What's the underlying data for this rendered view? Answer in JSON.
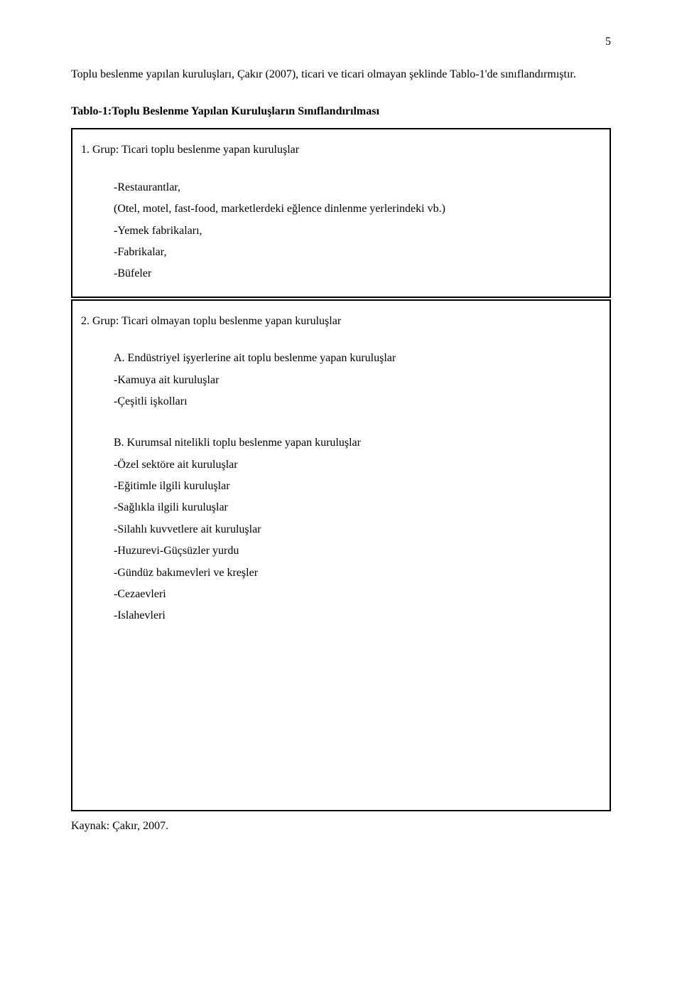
{
  "page_number": "5",
  "intro_paragraph": "Toplu beslenme yapılan kuruluşları, Çakır (2007), ticari ve ticari olmayan şeklinde Tablo-1'de sınıflandırmıştır.",
  "table_title": {
    "prefix": "Tablo-1:",
    "text": "Toplu Beslenme Yapılan Kuruluşların Sınıflandırılması"
  },
  "group1": {
    "header": "1. Grup: Ticari toplu beslenme yapan kuruluşlar",
    "items": [
      "-Restaurantlar,",
      "(Otel, motel, fast-food, marketlerdeki eğlence dinlenme yerlerindeki vb.)",
      "-Yemek fabrikaları,",
      "-Fabrikalar,",
      "-Büfeler"
    ]
  },
  "group2": {
    "header": "2. Grup: Ticari olmayan toplu beslenme yapan kuruluşlar",
    "sectionA": {
      "heading": "A. Endüstriyel işyerlerine ait toplu beslenme yapan kuruluşlar",
      "items": [
        "-Kamuya ait kuruluşlar",
        "-Çeşitli işkolları"
      ]
    },
    "sectionB": {
      "heading": "B. Kurumsal nitelikli toplu beslenme yapan kuruluşlar",
      "items": [
        "-Özel sektöre ait kuruluşlar",
        "-Eğitimle ilgili kuruluşlar",
        "-Sağlıkla ilgili kuruluşlar",
        "-Silahlı kuvvetlere ait kuruluşlar",
        "-Huzurevi-Güçsüzler yurdu",
        "-Gündüz bakımevleri ve kreşler",
        "-Cezaevleri",
        "-Islahevleri"
      ]
    }
  },
  "source": "Kaynak: Çakır, 2007."
}
